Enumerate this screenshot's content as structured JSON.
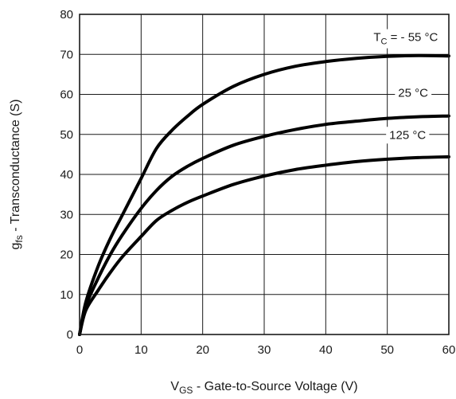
{
  "chart_data": {
    "type": "line",
    "xlabel": {
      "main": "V",
      "sub": "GS",
      "rest": " - Gate-to-Source Voltage (V)"
    },
    "ylabel": {
      "main": "g",
      "sub": "fs",
      "rest": " - Transconductance (S)"
    },
    "xlim": [
      0,
      60
    ],
    "ylim": [
      0,
      80
    ],
    "x_ticks": [
      0,
      10,
      20,
      30,
      40,
      50,
      60
    ],
    "y_ticks": [
      0,
      10,
      20,
      30,
      40,
      50,
      60,
      70,
      80
    ],
    "grid": true,
    "series": [
      {
        "label": {
          "main": "T",
          "sub": "C",
          "rest": " = - 55 °C"
        },
        "x": [
          0,
          1,
          3,
          5,
          7,
          10,
          12.5,
          15,
          17.5,
          20,
          25,
          30,
          35,
          40,
          45,
          50,
          55,
          60
        ],
        "y": [
          0,
          8,
          17,
          24,
          30,
          39,
          46.5,
          51,
          54.5,
          57.5,
          62,
          65,
          67,
          68.2,
          69,
          69.5,
          69.7,
          69.6
        ]
      },
      {
        "label": {
          "main": "25 °C",
          "sub": "",
          "rest": ""
        },
        "x": [
          0,
          1,
          3,
          5,
          7,
          10,
          12.5,
          15,
          17.5,
          20,
          25,
          30,
          35,
          40,
          45,
          50,
          55,
          60
        ],
        "y": [
          0,
          7,
          14,
          20,
          25,
          31.5,
          36,
          39.5,
          42,
          44,
          47.3,
          49.5,
          51.2,
          52.5,
          53.3,
          54,
          54.4,
          54.6
        ]
      },
      {
        "label": {
          "main": "125 °C",
          "sub": "",
          "rest": ""
        },
        "x": [
          0,
          1,
          3,
          5,
          7,
          10,
          12.5,
          15,
          17.5,
          20,
          25,
          30,
          35,
          40,
          45,
          50,
          55,
          60
        ],
        "y": [
          0,
          6,
          11,
          15.5,
          19.5,
          24.5,
          28.5,
          31,
          33,
          34.6,
          37.5,
          39.6,
          41.2,
          42.3,
          43.2,
          43.8,
          44.2,
          44.4
        ]
      }
    ]
  }
}
